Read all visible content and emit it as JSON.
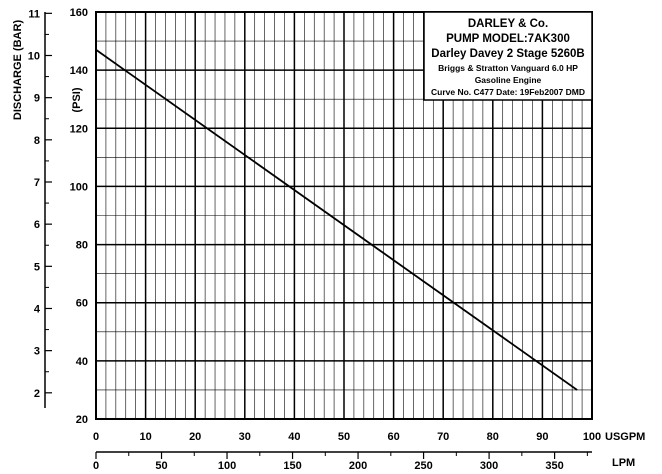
{
  "chart_data": {
    "type": "line",
    "xlabel": "USGPM",
    "xlim": [
      0,
      100
    ],
    "x_ticks": [
      "0",
      "10",
      "20",
      "30",
      "40",
      "50",
      "60",
      "70",
      "80",
      "90",
      "100"
    ],
    "x2label": "LPM",
    "x2_ticks": [
      "0",
      "50",
      "100",
      "150",
      "200",
      "250",
      "300",
      "350"
    ],
    "ylabel": "(PSI)",
    "ylim": [
      20,
      160
    ],
    "y_ticks": [
      "20",
      "40",
      "60",
      "80",
      "100",
      "120",
      "140",
      "160"
    ],
    "y2label": "DISCHARGE (BAR)",
    "y2_ticks": [
      "2",
      "3",
      "4",
      "5",
      "6",
      "7",
      "8",
      "9",
      "10",
      "11"
    ],
    "grid": true,
    "series": [
      {
        "x": [
          0,
          97
        ],
        "y": [
          147,
          30
        ]
      }
    ],
    "info_box": {
      "line1": "DARLEY & Co.",
      "line2": "PUMP MODEL:7AK300",
      "line3": "Darley Davey 2 Stage 5260B",
      "line4": "Briggs & Stratton Vanguard 6.0 HP",
      "line5": "Gasoline Engine",
      "line6": "Curve No. C477 Date: 19Feb2007 DMD"
    }
  }
}
